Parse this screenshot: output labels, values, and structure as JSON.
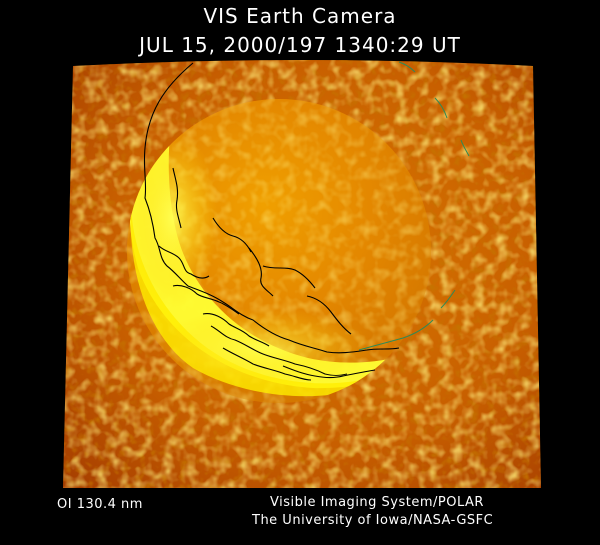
{
  "header": {
    "title": "VIS Earth Camera",
    "timestamp": "JUL 15, 2000/197 1340:29 UT"
  },
  "image": {
    "subject": "auroral-oval-earth-image",
    "palette": {
      "background": "#000000",
      "text": "#ffffff",
      "dark_orange": "#b84a00",
      "orange": "#e58a00",
      "bright_yellow": "#ffff33",
      "coastline": "#000000",
      "grid_line": "#2e8b57"
    }
  },
  "footer": {
    "wavelength": "OI  130.4 nm",
    "instrument": "Visible Imaging System/POLAR",
    "institution": "The University of Iowa/NASA-GSFC"
  }
}
